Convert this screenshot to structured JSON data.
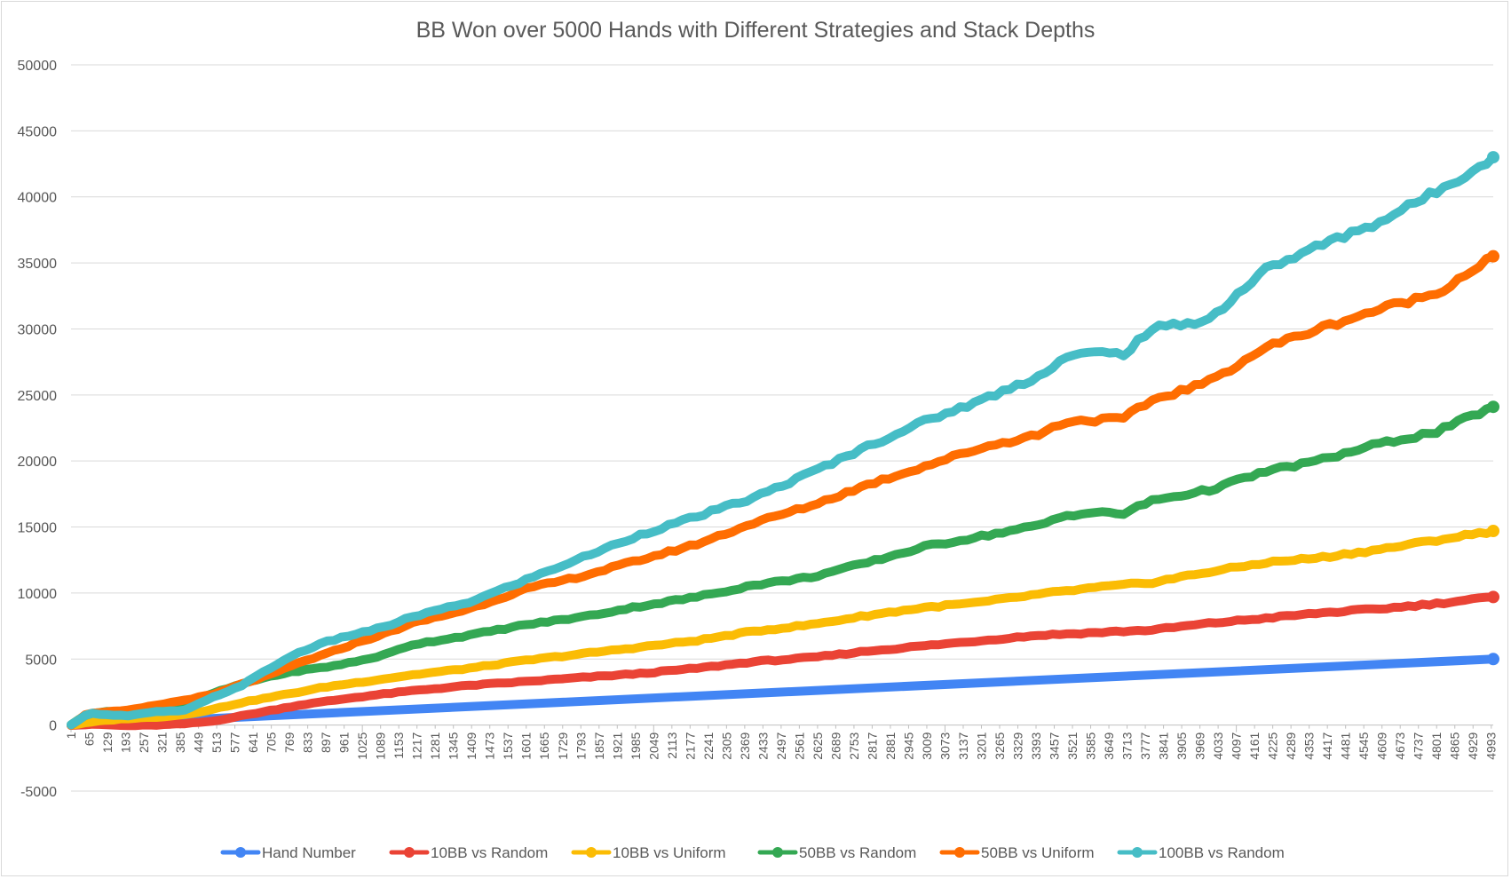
{
  "chart_data": {
    "type": "line",
    "title": "BB Won over 5000 Hands with Different Strategies and Stack Depths",
    "xlabel": "",
    "ylabel": "",
    "ylim": [
      -5000,
      50000
    ],
    "yticks": [
      -5000,
      0,
      5000,
      10000,
      15000,
      20000,
      25000,
      30000,
      35000,
      40000,
      45000,
      50000
    ],
    "xlim": [
      1,
      5000
    ],
    "xtick_labels": [
      "1",
      "65",
      "129",
      "193",
      "257",
      "321",
      "385",
      "449",
      "513",
      "577",
      "641",
      "705",
      "769",
      "833",
      "897",
      "961",
      "1025",
      "1089",
      "1153",
      "1217",
      "1281",
      "1345",
      "1409",
      "1473",
      "1537",
      "1601",
      "1665",
      "1729",
      "1793",
      "1857",
      "1921",
      "1985",
      "2049",
      "2113",
      "2177",
      "2241",
      "2305",
      "2369",
      "2433",
      "2497",
      "2561",
      "2625",
      "2689",
      "2753",
      "2817",
      "2881",
      "2945",
      "3009",
      "3073",
      "3137",
      "3201",
      "3265",
      "3329",
      "3393",
      "3457",
      "3521",
      "3585",
      "3649",
      "3713",
      "3777",
      "3841",
      "3905",
      "3969",
      "4033",
      "4097",
      "4161",
      "4225",
      "4289",
      "4353",
      "4417",
      "4481",
      "4545",
      "4609",
      "4673",
      "4737",
      "4801",
      "4865",
      "4929",
      "4993"
    ],
    "grid": true,
    "legend_position": "bottom",
    "series": [
      {
        "name": "Hand Number",
        "color": "#4285f4",
        "x": [
          1,
          5000
        ],
        "y": [
          1,
          5000
        ]
      },
      {
        "name": "10BB vs Random",
        "color": "#ea4335",
        "x": [
          1,
          100,
          200,
          300,
          400,
          500,
          600,
          700,
          800,
          1000,
          1200,
          1400,
          1600,
          1800,
          2000,
          2200,
          2400,
          2600,
          2800,
          3000,
          3200,
          3400,
          3600,
          3800,
          4000,
          4200,
          4400,
          4600,
          4800,
          5000
        ],
        "y": [
          0,
          50,
          -50,
          0,
          100,
          300,
          700,
          1100,
          1500,
          2100,
          2600,
          3000,
          3300,
          3600,
          3900,
          4300,
          4800,
          5100,
          5600,
          6000,
          6400,
          6800,
          7000,
          7200,
          7700,
          8100,
          8500,
          8800,
          9200,
          9700
        ]
      },
      {
        "name": "10BB vs Uniform",
        "color": "#fbbc04",
        "x": [
          1,
          100,
          200,
          300,
          400,
          500,
          600,
          700,
          800,
          900,
          1000,
          1200,
          1400,
          1600,
          1800,
          2000,
          2200,
          2400,
          2600,
          2800,
          3000,
          3200,
          3400,
          3600,
          3800,
          4000,
          4200,
          4400,
          4600,
          4800,
          5000
        ],
        "y": [
          0,
          300,
          500,
          600,
          800,
          1200,
          1700,
          2100,
          2500,
          2900,
          3200,
          3800,
          4300,
          4900,
          5400,
          5900,
          6400,
          7100,
          7600,
          8300,
          8900,
          9300,
          9900,
          10400,
          10800,
          11600,
          12300,
          12700,
          13300,
          14000,
          14700
        ]
      },
      {
        "name": "50BB vs Random",
        "color": "#34a853",
        "x": [
          1,
          60,
          200,
          400,
          500,
          600,
          700,
          800,
          900,
          1000,
          1100,
          1200,
          1400,
          1600,
          1800,
          2000,
          2200,
          2400,
          2600,
          2800,
          3000,
          3200,
          3400,
          3500,
          3600,
          3700,
          3800,
          4000,
          4200,
          4400,
          4600,
          4800,
          5000
        ],
        "y": [
          0,
          900,
          1100,
          1500,
          2400,
          3100,
          3700,
          4100,
          4400,
          4800,
          5300,
          6100,
          6800,
          7600,
          8200,
          9000,
          9700,
          10600,
          11200,
          12300,
          13500,
          14300,
          15100,
          15900,
          16100,
          16000,
          17000,
          17800,
          19200,
          20100,
          21300,
          22200,
          24100
        ]
      },
      {
        "name": "50BB vs Uniform",
        "color": "#ff6d01",
        "x": [
          1,
          60,
          200,
          300,
          400,
          500,
          600,
          700,
          800,
          900,
          1000,
          1100,
          1200,
          1400,
          1600,
          1800,
          2000,
          2200,
          2400,
          2600,
          2800,
          3000,
          3200,
          3400,
          3500,
          3600,
          3700,
          3800,
          4000,
          4200,
          4400,
          4600,
          4800,
          5000
        ],
        "y": [
          0,
          900,
          1100,
          1500,
          1900,
          2300,
          3100,
          3800,
          4700,
          5400,
          6200,
          6900,
          7700,
          8800,
          10300,
          11300,
          12500,
          13700,
          15300,
          16600,
          18200,
          19600,
          21000,
          22000,
          23000,
          23100,
          23200,
          24600,
          26000,
          28600,
          30100,
          31500,
          32700,
          35500
        ]
      },
      {
        "name": "100BB vs Random",
        "color": "#46bdc6",
        "x": [
          1,
          60,
          200,
          300,
          400,
          500,
          600,
          700,
          800,
          900,
          1000,
          1100,
          1200,
          1400,
          1600,
          1800,
          2000,
          2200,
          2400,
          2600,
          2800,
          3000,
          3200,
          3400,
          3500,
          3600,
          3700,
          3800,
          4000,
          4200,
          4400,
          4600,
          4800,
          5000
        ],
        "y": [
          0,
          900,
          700,
          1000,
          1100,
          2100,
          3000,
          4300,
          5500,
          6300,
          6900,
          7400,
          8200,
          9300,
          11000,
          12700,
          14400,
          15800,
          17200,
          19100,
          21100,
          23000,
          24600,
          26400,
          27900,
          28200,
          28100,
          30000,
          30700,
          34500,
          36400,
          38100,
          40400,
          43000
        ]
      }
    ]
  }
}
